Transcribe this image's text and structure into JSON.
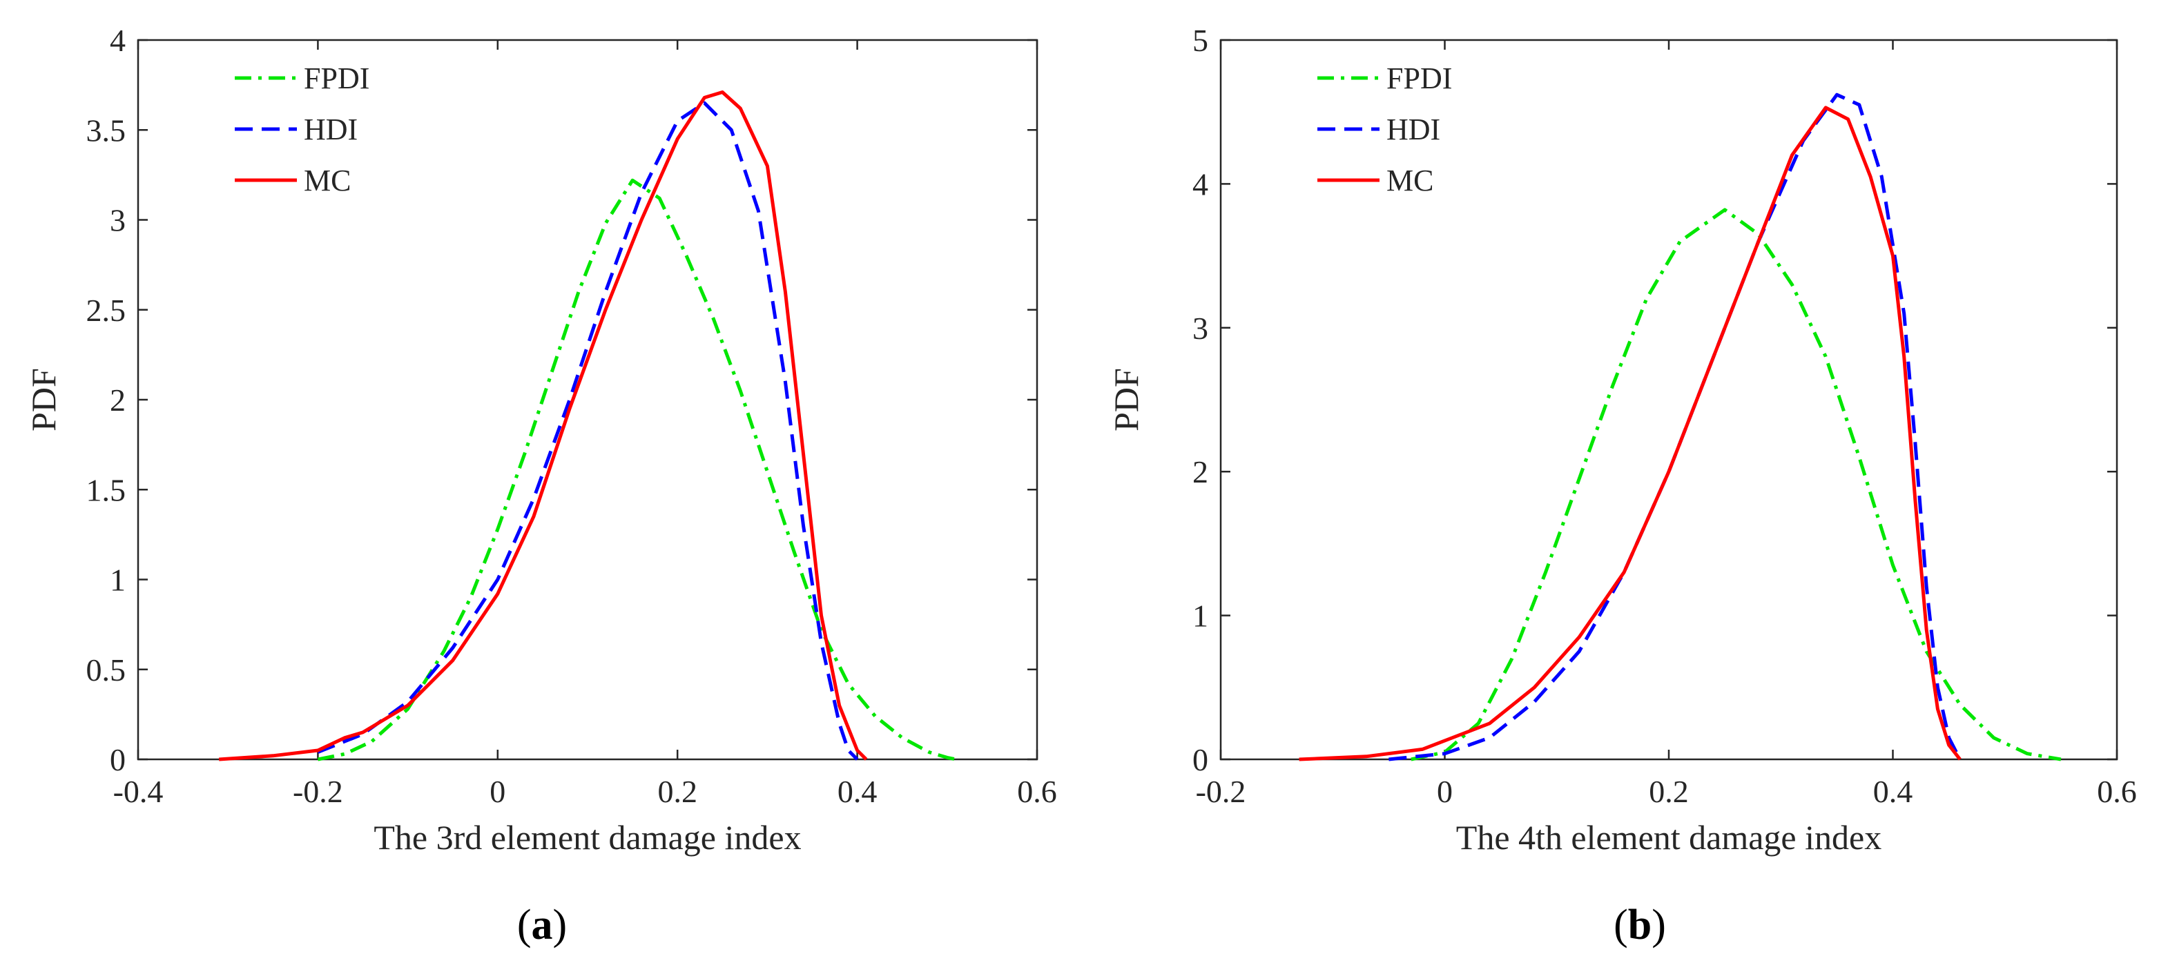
{
  "chart_data": [
    {
      "type": "line",
      "panel": "(a)",
      "panel_letter": "a",
      "xlabel": "The 3rd element damage index",
      "ylabel": "PDF",
      "xlim": [
        -0.4,
        0.6
      ],
      "ylim": [
        0,
        4
      ],
      "xticks": [
        -0.4,
        -0.2,
        0,
        0.2,
        0.4,
        0.6
      ],
      "yticks": [
        0,
        0.5,
        1,
        1.5,
        2,
        2.5,
        3,
        3.5,
        4
      ],
      "xtick_labels": [
        "-0.4",
        "-0.2",
        "0",
        "0.2",
        "0.4",
        "0.6"
      ],
      "ytick_labels": [
        "0",
        "0.5",
        "1",
        "1.5",
        "2",
        "2.5",
        "3",
        "3.5",
        "4"
      ],
      "legend_position": "top-left",
      "series": [
        {
          "name": "FPDI",
          "color": "#00e600",
          "dash": "dashdot",
          "points": [
            [
              -0.2,
              0
            ],
            [
              -0.17,
              0.03
            ],
            [
              -0.14,
              0.1
            ],
            [
              -0.1,
              0.28
            ],
            [
              -0.06,
              0.6
            ],
            [
              -0.03,
              0.9
            ],
            [
              0,
              1.28
            ],
            [
              0.03,
              1.7
            ],
            [
              0.06,
              2.15
            ],
            [
              0.09,
              2.6
            ],
            [
              0.12,
              2.98
            ],
            [
              0.15,
              3.22
            ],
            [
              0.18,
              3.12
            ],
            [
              0.21,
              2.8
            ],
            [
              0.24,
              2.45
            ],
            [
              0.27,
              2.05
            ],
            [
              0.3,
              1.6
            ],
            [
              0.33,
              1.15
            ],
            [
              0.36,
              0.72
            ],
            [
              0.39,
              0.42
            ],
            [
              0.42,
              0.24
            ],
            [
              0.45,
              0.12
            ],
            [
              0.48,
              0.04
            ],
            [
              0.5,
              0.01
            ],
            [
              0.51,
              0
            ]
          ]
        },
        {
          "name": "HDI",
          "color": "#0000ff",
          "dash": "dashed",
          "points": [
            [
              -0.2,
              0.04
            ],
            [
              -0.15,
              0.14
            ],
            [
              -0.1,
              0.32
            ],
            [
              -0.05,
              0.62
            ],
            [
              0,
              1.0
            ],
            [
              0.04,
              1.45
            ],
            [
              0.08,
              2.0
            ],
            [
              0.12,
              2.6
            ],
            [
              0.16,
              3.15
            ],
            [
              0.2,
              3.55
            ],
            [
              0.23,
              3.65
            ],
            [
              0.26,
              3.5
            ],
            [
              0.29,
              3.05
            ],
            [
              0.32,
              2.1
            ],
            [
              0.34,
              1.3
            ],
            [
              0.36,
              0.65
            ],
            [
              0.38,
              0.2
            ],
            [
              0.39,
              0.05
            ],
            [
              0.4,
              0
            ]
          ]
        },
        {
          "name": "MC",
          "color": "#ff0000",
          "dash": "solid",
          "points": [
            [
              -0.31,
              0
            ],
            [
              -0.25,
              0.02
            ],
            [
              -0.2,
              0.05
            ],
            [
              -0.17,
              0.12
            ],
            [
              -0.15,
              0.15
            ],
            [
              -0.1,
              0.3
            ],
            [
              -0.05,
              0.55
            ],
            [
              0,
              0.92
            ],
            [
              0.04,
              1.35
            ],
            [
              0.08,
              1.95
            ],
            [
              0.12,
              2.5
            ],
            [
              0.16,
              3.0
            ],
            [
              0.2,
              3.45
            ],
            [
              0.23,
              3.68
            ],
            [
              0.25,
              3.71
            ],
            [
              0.27,
              3.62
            ],
            [
              0.3,
              3.3
            ],
            [
              0.32,
              2.6
            ],
            [
              0.34,
              1.7
            ],
            [
              0.36,
              0.8
            ],
            [
              0.38,
              0.3
            ],
            [
              0.4,
              0.05
            ],
            [
              0.41,
              0
            ]
          ]
        }
      ]
    },
    {
      "type": "line",
      "panel": "(b)",
      "panel_letter": "b",
      "xlabel": "The 4th element damage index",
      "ylabel": "PDF",
      "xlim": [
        -0.2,
        0.6
      ],
      "ylim": [
        0,
        5
      ],
      "xticks": [
        -0.2,
        0,
        0.2,
        0.4,
        0.6
      ],
      "yticks": [
        0,
        1,
        2,
        3,
        4,
        5
      ],
      "xtick_labels": [
        "-0.2",
        "0",
        "0.2",
        "0.4",
        "0.6"
      ],
      "ytick_labels": [
        "0",
        "1",
        "2",
        "3",
        "4",
        "5"
      ],
      "legend_position": "top-left",
      "series": [
        {
          "name": "FPDI",
          "color": "#00e600",
          "dash": "dashdot",
          "points": [
            [
              -0.03,
              0
            ],
            [
              0,
              0.05
            ],
            [
              0.03,
              0.25
            ],
            [
              0.06,
              0.7
            ],
            [
              0.09,
              1.3
            ],
            [
              0.12,
              1.95
            ],
            [
              0.15,
              2.6
            ],
            [
              0.18,
              3.2
            ],
            [
              0.21,
              3.6
            ],
            [
              0.25,
              3.82
            ],
            [
              0.28,
              3.65
            ],
            [
              0.31,
              3.3
            ],
            [
              0.34,
              2.8
            ],
            [
              0.37,
              2.1
            ],
            [
              0.4,
              1.35
            ],
            [
              0.43,
              0.75
            ],
            [
              0.46,
              0.38
            ],
            [
              0.49,
              0.15
            ],
            [
              0.52,
              0.04
            ],
            [
              0.55,
              0
            ]
          ]
        },
        {
          "name": "HDI",
          "color": "#0000ff",
          "dash": "dashed",
          "points": [
            [
              -0.05,
              0
            ],
            [
              0,
              0.04
            ],
            [
              0.04,
              0.15
            ],
            [
              0.08,
              0.4
            ],
            [
              0.12,
              0.75
            ],
            [
              0.16,
              1.3
            ],
            [
              0.2,
              2.0
            ],
            [
              0.24,
              2.8
            ],
            [
              0.28,
              3.6
            ],
            [
              0.32,
              4.3
            ],
            [
              0.35,
              4.62
            ],
            [
              0.37,
              4.55
            ],
            [
              0.39,
              4.05
            ],
            [
              0.41,
              3.1
            ],
            [
              0.42,
              2.2
            ],
            [
              0.43,
              1.2
            ],
            [
              0.44,
              0.5
            ],
            [
              0.45,
              0.15
            ],
            [
              0.46,
              0
            ]
          ]
        },
        {
          "name": "MC",
          "color": "#ff0000",
          "dash": "solid",
          "points": [
            [
              -0.13,
              0
            ],
            [
              -0.07,
              0.02
            ],
            [
              -0.02,
              0.07
            ],
            [
              0.01,
              0.16
            ],
            [
              0.04,
              0.25
            ],
            [
              0.08,
              0.5
            ],
            [
              0.12,
              0.85
            ],
            [
              0.16,
              1.3
            ],
            [
              0.2,
              2.0
            ],
            [
              0.24,
              2.8
            ],
            [
              0.28,
              3.6
            ],
            [
              0.31,
              4.2
            ],
            [
              0.34,
              4.53
            ],
            [
              0.36,
              4.45
            ],
            [
              0.38,
              4.05
            ],
            [
              0.4,
              3.5
            ],
            [
              0.41,
              2.8
            ],
            [
              0.42,
              1.8
            ],
            [
              0.43,
              0.9
            ],
            [
              0.44,
              0.35
            ],
            [
              0.45,
              0.1
            ],
            [
              0.46,
              0
            ]
          ]
        }
      ]
    }
  ]
}
